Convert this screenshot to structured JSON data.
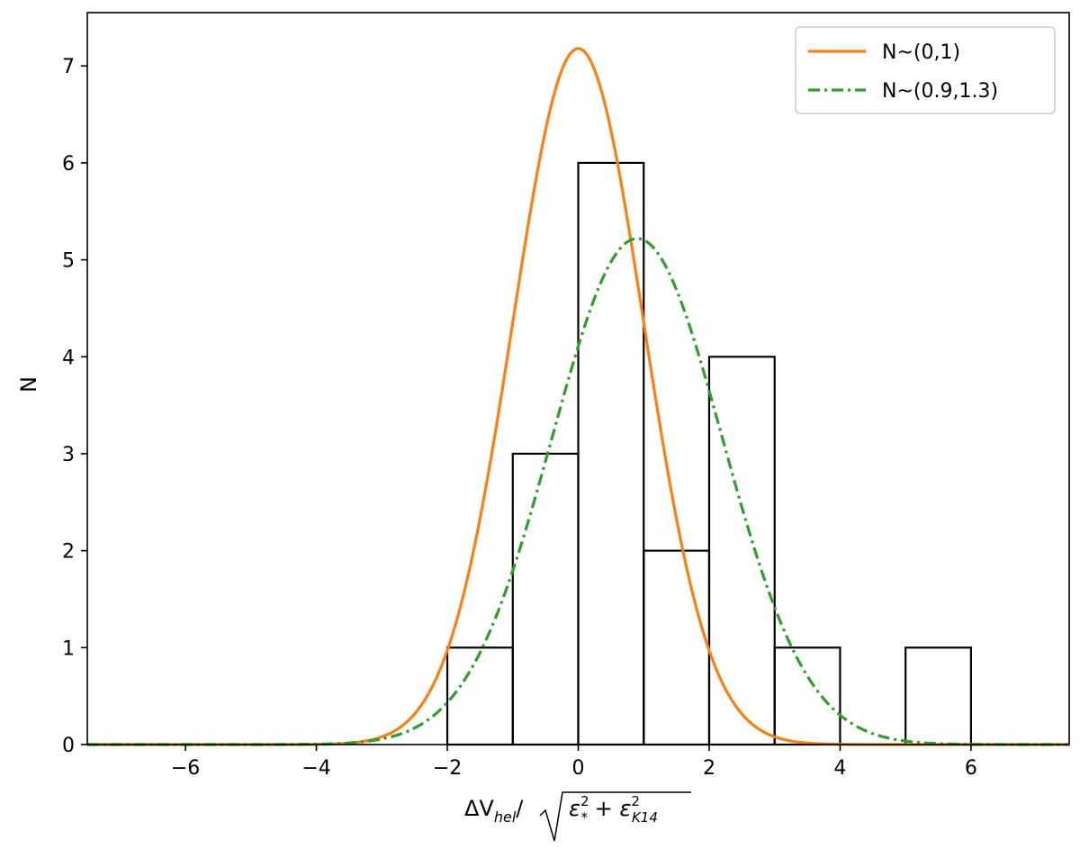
{
  "chart_data": {
    "type": "bar",
    "xlabel": "ΔV",
    "xlabel_sub": "hel",
    "xlabel_rest": "/√(ε",
    "xlabel_full": "ΔV_hel/√(ε_*² + ε_K14²)",
    "ylabel": "N",
    "xlim": [
      -7.5,
      7.5
    ],
    "ylim": [
      0,
      7.55
    ],
    "xticks": [
      -6,
      -4,
      -2,
      0,
      2,
      4,
      6
    ],
    "xtick_labels": [
      "−6",
      "−4",
      "−2",
      "0",
      "2",
      "4",
      "6"
    ],
    "yticks": [
      0,
      1,
      2,
      3,
      4,
      5,
      6,
      7
    ],
    "ytick_labels": [
      "0",
      "1",
      "2",
      "3",
      "4",
      "5",
      "6",
      "7"
    ],
    "histogram": {
      "bin_edges": [
        -2,
        -1,
        0,
        1,
        2,
        3,
        4,
        5,
        6
      ],
      "counts": [
        1,
        3,
        6,
        2,
        4,
        1,
        0,
        1
      ],
      "edge_color": "#000000"
    },
    "series": [
      {
        "name": "N~(0,1)",
        "style": "solid",
        "color": "#ff7f0e",
        "mean": 0,
        "sigma": 1,
        "amplitude": 7.18
      },
      {
        "name": "N~(0.9,1.3)",
        "style": "dashdot",
        "color": "#2ca02c",
        "mean": 0.9,
        "sigma": 1.3,
        "amplitude": 5.22
      }
    ],
    "legend_position": "top-right",
    "grid": false
  }
}
